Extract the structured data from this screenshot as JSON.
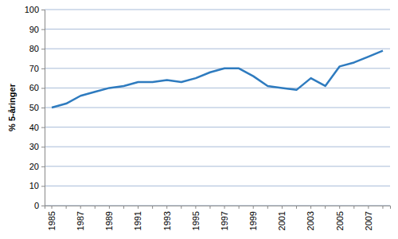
{
  "chart_data": {
    "type": "line",
    "y_label": "% 5-åringer",
    "categories": [
      "1985",
      null,
      "1987",
      null,
      "1989",
      null,
      "1991",
      null,
      "1993",
      null,
      "1995",
      null,
      "1997",
      null,
      "1999",
      null,
      "2001",
      null,
      "2003",
      null,
      "2005",
      null,
      "2007",
      null
    ],
    "values": [
      50,
      52,
      56,
      58,
      60,
      61,
      63,
      63,
      64,
      63,
      65,
      68,
      70,
      70,
      66,
      61,
      60,
      59,
      65,
      61,
      71,
      73,
      76,
      79
    ],
    "color": "#2e7bbf",
    "ylim": [
      0,
      100
    ],
    "yticks": [
      0,
      10,
      20,
      30,
      40,
      50,
      60,
      70,
      80,
      90,
      100
    ],
    "grid": true
  }
}
